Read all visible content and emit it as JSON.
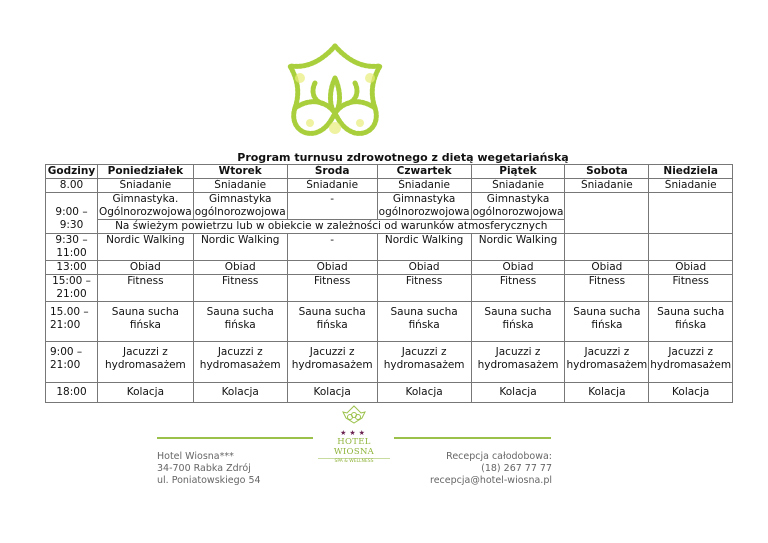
{
  "title": "Program turnusu zdrowotnego z dietą wegetariańską",
  "headers": [
    "Godziny",
    "Poniedziałek",
    "Wtorek",
    "Środa",
    "Czwartek",
    "Piątek",
    "Sobota",
    "Niedziela"
  ],
  "rows": {
    "breakfast": {
      "time": "8.00",
      "cells": [
        "Śniadanie",
        "Śniadanie",
        "Śniadanie",
        "Śniadanie",
        "Śniadanie",
        "Śniadanie",
        "Śniadanie"
      ]
    },
    "gym": {
      "time": "9:00 – 9:30",
      "cells": [
        "Gimnastyka. Ogólnorozwojowa",
        "Gimnastyka ogólnorozwojowa",
        "-",
        "Gimnastyka ogólnorozwojowa",
        "Gimnastyka ogólnorozwojowa"
      ],
      "note": "Na świeżym powietrzu lub w obiekcie w zależności od warunków atmosferycznych"
    },
    "nordic": {
      "time": "9:30 – 11:00",
      "cells": [
        "Nordic Walking",
        "Nordic Walking",
        "-",
        "Nordic Walking",
        "Nordic Walking",
        "",
        ""
      ]
    },
    "lunch": {
      "time": "13:00",
      "cells": [
        "Obiad",
        "Obiad",
        "Obiad",
        "Obiad",
        "Obiad",
        "Obiad",
        "Obiad"
      ]
    },
    "fitness": {
      "time": "15:00 – 21:00",
      "cells": [
        "Fitness",
        "Fitness",
        "Fitness",
        "Fitness",
        "Fitness",
        "Fitness",
        "Fitness"
      ]
    },
    "sauna": {
      "time": "15.00 – 21:00",
      "cells": [
        "Sauna sucha fińska",
        "Sauna sucha fińska",
        "Sauna sucha fińska",
        "Sauna sucha fińska",
        "Sauna sucha fińska",
        "Sauna sucha fińska",
        "Sauna sucha fińska"
      ]
    },
    "jacuzzi": {
      "time": "9:00 – 21:00",
      "cells": [
        "Jacuzzi z hydromasażem",
        "Jacuzzi z hydromasażem",
        "Jacuzzi z hydromasażem",
        "Jacuzzi z hydromasażem",
        "Jacuzzi z hydromasażem",
        "Jacuzzi z hydromasażem",
        "Jacuzzi z hydromasażem"
      ]
    },
    "dinner": {
      "time": "18:00",
      "cells": [
        "Kolacja",
        "Kolacja",
        "Kolacja",
        "Kolacja",
        "Kolacja",
        "Kolacja",
        "Kolacja"
      ]
    }
  },
  "footer": {
    "left": [
      "Hotel Wiosna***",
      "34-700 Rabka Zdrój",
      "ul. Poniatowskiego 54"
    ],
    "right": [
      "Recepcja całodobowa:",
      "(18) 267 77 77",
      "recepcja@hotel-wiosna.pl"
    ],
    "logo": {
      "stars": "★★★",
      "name": "HOTEL WIOSNA",
      "tagline": "SPA & WELLNESS"
    }
  },
  "colors": {
    "accent": "#9bc14a",
    "stars": "#6b2352"
  }
}
